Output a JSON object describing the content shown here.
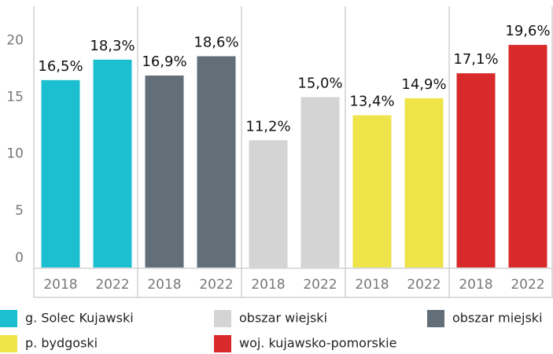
{
  "chart_data": {
    "type": "bar",
    "categories": [
      "2018",
      "2022"
    ],
    "series": [
      {
        "name": "g. Solec Kujawski",
        "color": "#1bbfd0",
        "values": [
          16.5,
          18.3
        ],
        "value_labels": [
          "16,5%",
          "18,3%"
        ]
      },
      {
        "name": "obszar miejski",
        "color": "#626e78",
        "values": [
          16.9,
          18.6
        ],
        "value_labels": [
          "16,9%",
          "18,6%"
        ]
      },
      {
        "name": "obszar wiejski",
        "color": "#d4d4d4",
        "values": [
          11.2,
          15.0
        ],
        "value_labels": [
          "11,2%",
          "15,0%"
        ]
      },
      {
        "name": "p. bydgoski",
        "color": "#efe34a",
        "values": [
          13.4,
          14.9
        ],
        "value_labels": [
          "13,4%",
          "14,9%"
        ]
      },
      {
        "name": "woj. kujawsko-pomorskie",
        "color": "#d82a2a",
        "values": [
          17.1,
          19.6
        ],
        "value_labels": [
          "17,1%",
          "19,6%"
        ]
      }
    ],
    "ylim": [
      0,
      23
    ],
    "yticks": [
      0,
      5,
      10,
      15,
      20
    ]
  }
}
